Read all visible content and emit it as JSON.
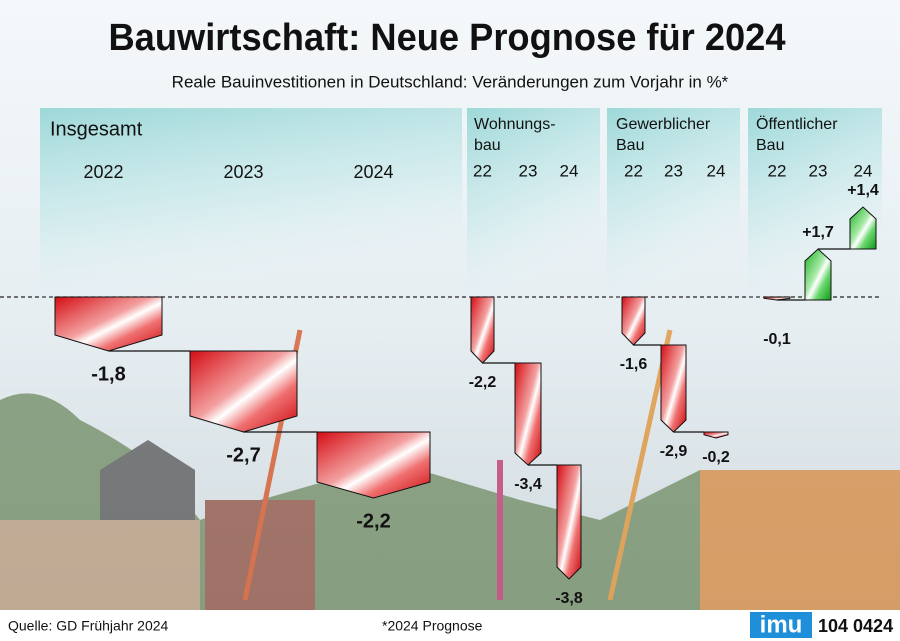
{
  "title": "Bauwirtschaft: Neue Prognose für 2024",
  "subtitle": "Reale Bauinvestitionen in Deutschland: Veränderungen zum Vorjahr in %*",
  "source": "Quelle: GD Frühjahr 2024",
  "footnote": "*2024 Prognose",
  "logo": "imu",
  "code": "104 0424",
  "chart_data": [
    {
      "type": "waterfall",
      "title": [
        "Insgesamt"
      ],
      "categories": [
        "2022",
        "2023",
        "2024"
      ],
      "values": [
        -1.8,
        -2.7,
        -2.2
      ],
      "value_labels": [
        "-1,8",
        "-2,7",
        "-2,2"
      ],
      "color_negative": "#e3141b",
      "color_positive": "#22c42a"
    },
    {
      "type": "waterfall",
      "title": [
        "Wohnungs-",
        "bau"
      ],
      "categories": [
        "22",
        "23",
        "24"
      ],
      "values": [
        -2.2,
        -3.4,
        -3.8
      ],
      "value_labels": [
        "-2,2",
        "-3,4",
        "-3,8"
      ],
      "color_negative": "#e3141b",
      "color_positive": "#22c42a"
    },
    {
      "type": "waterfall",
      "title": [
        "Gewerblicher",
        "Bau"
      ],
      "categories": [
        "22",
        "23",
        "24"
      ],
      "values": [
        -1.6,
        -2.9,
        -0.2
      ],
      "value_labels": [
        "-1,6",
        "-2,9",
        "-0,2"
      ],
      "color_negative": "#e3141b",
      "color_positive": "#22c42a"
    },
    {
      "type": "waterfall",
      "title": [
        "Öffentlicher",
        "Bau"
      ],
      "categories": [
        "22",
        "23",
        "24"
      ],
      "values": [
        -0.1,
        1.7,
        1.4
      ],
      "value_labels": [
        "-0,1",
        "+1,7",
        "+1,4"
      ],
      "color_negative": "#e3141b",
      "color_positive": "#22c42a"
    }
  ]
}
